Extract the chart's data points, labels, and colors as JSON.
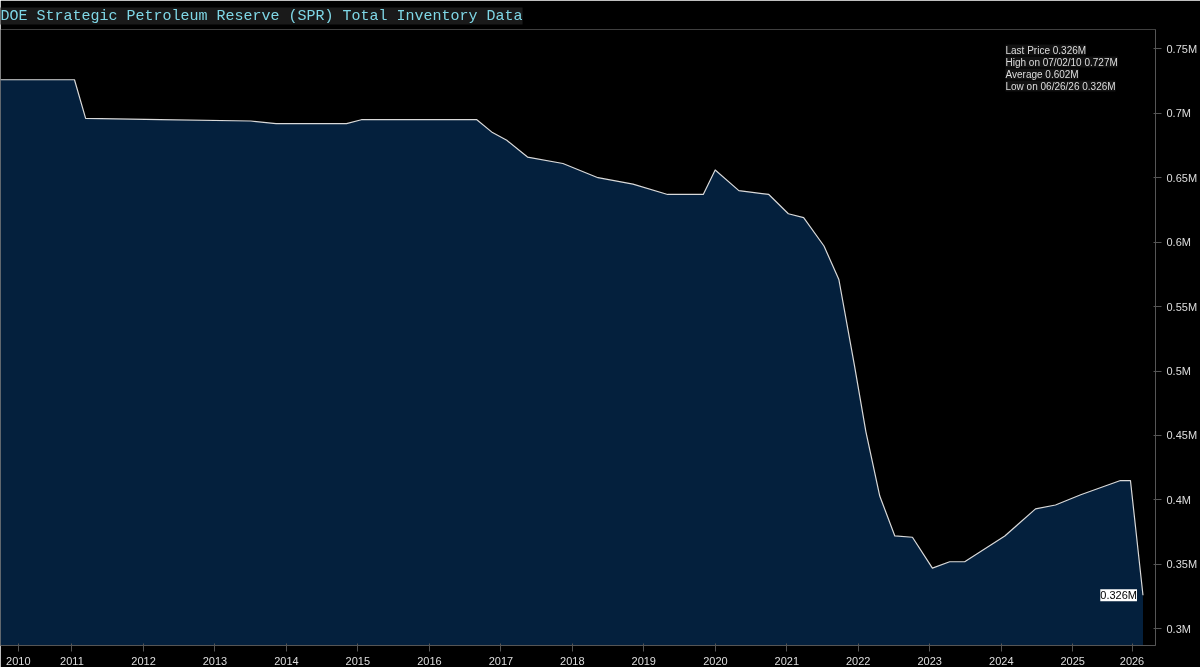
{
  "chart_data": {
    "type": "area",
    "title": "DOE Strategic Petroleum Reserve (SPR) Total Inventory Data",
    "x": [
      "2010-07-02",
      "2011-07-15",
      "2011-09-10",
      "2012-09-25",
      "2014-01-01",
      "2014-05-10",
      "2015-05-05",
      "2015-07-20",
      "2017-03-01",
      "2017-05-20",
      "2017-08-01",
      "2017-11-15",
      "2018-05-15",
      "2018-11-10",
      "2019-05-08",
      "2019-11-01",
      "2020-05-01",
      "2020-07-01",
      "2020-10-30",
      "2021-04-01",
      "2021-07-10",
      "2021-09-26",
      "2022-01-08",
      "2022-03-25",
      "2022-06-13",
      "2022-08-10",
      "2022-10-20",
      "2023-01-05",
      "2023-04-05",
      "2023-07-16",
      "2023-10-12",
      "2023-12-28",
      "2024-07-20",
      "2024-12-24",
      "2025-04-05",
      "2025-08-12",
      "2026-03-03",
      "2026-04-23",
      "2026-06-26"
    ],
    "series": [
      {
        "color": "#04203d",
        "values": [
          0.726,
          0.726,
          0.696,
          0.695,
          0.694,
          0.692,
          0.692,
          0.695,
          0.695,
          0.685,
          0.679,
          0.666,
          0.661,
          0.65,
          0.645,
          0.637,
          0.637,
          0.656,
          0.64,
          0.637,
          0.622,
          0.619,
          0.597,
          0.571,
          0.504,
          0.453,
          0.403,
          0.372,
          0.371,
          0.347,
          0.352,
          0.352,
          0.372,
          0.393,
          0.396,
          0.404,
          0.415,
          0.415,
          0.326
        ]
      }
    ],
    "xlim": [
      "2010-07-02",
      "2026-08-29"
    ],
    "xticks": [
      {
        "value": "2010-10-01",
        "label": "2010"
      },
      {
        "value": "2011-07-02",
        "label": "2011"
      },
      {
        "value": "2012-07-02",
        "label": "2012"
      },
      {
        "value": "2013-07-02",
        "label": "2013"
      },
      {
        "value": "2014-07-02",
        "label": "2014"
      },
      {
        "value": "2015-07-02",
        "label": "2015"
      },
      {
        "value": "2016-07-02",
        "label": "2016"
      },
      {
        "value": "2017-07-02",
        "label": "2017"
      },
      {
        "value": "2018-07-02",
        "label": "2018"
      },
      {
        "value": "2019-07-02",
        "label": "2019"
      },
      {
        "value": "2020-07-02",
        "label": "2020"
      },
      {
        "value": "2021-07-02",
        "label": "2021"
      },
      {
        "value": "2022-07-02",
        "label": "2022"
      },
      {
        "value": "2023-07-02",
        "label": "2023"
      },
      {
        "value": "2024-07-02",
        "label": "2024"
      },
      {
        "value": "2025-07-02",
        "label": "2025"
      },
      {
        "value": "2026-05-01",
        "label": "2026"
      }
    ],
    "ylim": [
      0.287,
      0.765
    ],
    "yticks": [
      {
        "value": 0.3,
        "label": "0.3M"
      },
      {
        "value": 0.35,
        "label": "0.35M"
      },
      {
        "value": 0.4,
        "label": "0.4M"
      },
      {
        "value": 0.45,
        "label": "0.45M"
      },
      {
        "value": 0.5,
        "label": "0.5M"
      },
      {
        "value": 0.55,
        "label": "0.55M"
      },
      {
        "value": 0.6,
        "label": "0.6M"
      },
      {
        "value": 0.65,
        "label": "0.65M"
      },
      {
        "value": 0.7,
        "label": "0.7M"
      },
      {
        "value": 0.75,
        "label": "0.75M"
      }
    ],
    "annotations": [
      "Last Price 0.326M",
      "High on 07/02/10 0.727M",
      "Average 0.602M",
      "Low on 06/26/26 0.326M",
      {
        "text": "0.326M",
        "x": "2026-06-26",
        "y": 0.326
      }
    ],
    "grid": false
  }
}
